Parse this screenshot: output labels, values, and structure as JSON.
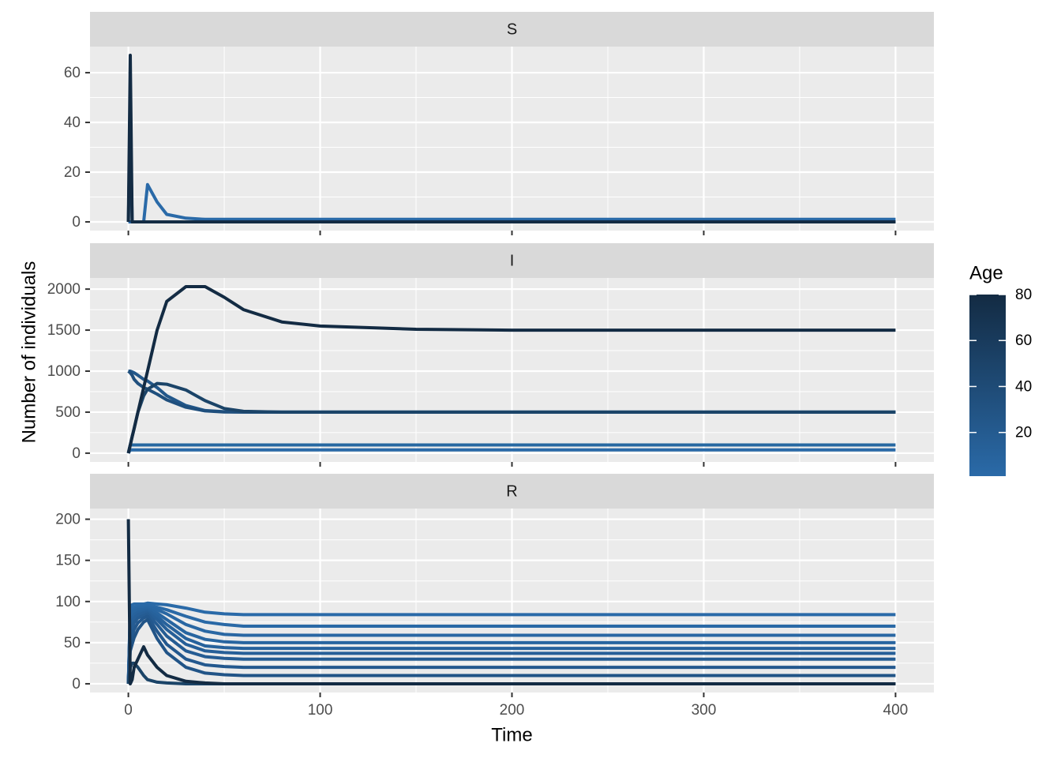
{
  "chart_data": [
    {
      "type": "line",
      "title": "S",
      "x": [
        0,
        1,
        2,
        3,
        5,
        8,
        10,
        15,
        20,
        30,
        40,
        50,
        60,
        80,
        100,
        150,
        200,
        300,
        400
      ],
      "xlim": [
        -20,
        420
      ],
      "xticks": [
        0,
        100,
        200,
        300,
        400
      ],
      "ylim": [
        -3.5,
        70.5
      ],
      "yticks": [
        0,
        20,
        40,
        60
      ],
      "grid": true,
      "series": [
        {
          "color": "#2a6aa8",
          "values": [
            0,
            0,
            0,
            0,
            0,
            0,
            15,
            8,
            3,
            1.5,
            1,
            1,
            1,
            1,
            1,
            1,
            1,
            1,
            1
          ]
        },
        {
          "color": "#1f4f7d",
          "values": [
            0,
            42,
            0,
            0,
            0,
            0,
            0,
            0,
            0,
            0,
            0,
            0,
            0,
            0,
            0,
            0,
            0,
            0,
            0
          ]
        },
        {
          "color": "#132b43",
          "values": [
            0,
            67,
            0,
            0,
            0,
            0,
            0,
            0,
            0,
            0,
            0,
            0,
            0,
            0,
            0,
            0,
            0,
            0,
            0
          ]
        }
      ]
    },
    {
      "type": "line",
      "title": "I",
      "x": [
        0,
        1,
        2,
        3,
        5,
        8,
        10,
        15,
        20,
        30,
        40,
        50,
        60,
        80,
        100,
        150,
        200,
        300,
        400
      ],
      "xlim": [
        -20,
        420
      ],
      "xticks": [
        0,
        100,
        200,
        300,
        400
      ],
      "ylim": [
        -107,
        2136
      ],
      "yticks": [
        0,
        500,
        1000,
        1500,
        2000
      ],
      "grid": true,
      "ylabel": "Number of individuals",
      "legend": {
        "title": "Age",
        "limits": [
          1,
          80
        ],
        "ticks": [
          20,
          40,
          60,
          80
        ],
        "low": "#2a6aa8",
        "high": "#132b43"
      },
      "series": [
        {
          "color": "#2a6aa8",
          "values": [
            0,
            40,
            40,
            40,
            40,
            40,
            40,
            40,
            40,
            40,
            40,
            40,
            40,
            40,
            40,
            40,
            40,
            40,
            40
          ]
        },
        {
          "color": "#2668a2",
          "values": [
            0,
            100,
            100,
            100,
            100,
            100,
            100,
            100,
            100,
            100,
            100,
            100,
            100,
            100,
            100,
            100,
            100,
            100,
            100
          ]
        },
        {
          "color": "#22578a",
          "values": [
            1000,
            1000,
            990,
            980,
            950,
            900,
            880,
            800,
            700,
            580,
            520,
            505,
            500,
            500,
            500,
            500,
            500,
            500,
            500
          ]
        },
        {
          "color": "#1f4f7d",
          "values": [
            1000,
            980,
            950,
            900,
            850,
            800,
            780,
            720,
            650,
            560,
            515,
            502,
            500,
            500,
            500,
            500,
            500,
            500,
            500
          ]
        },
        {
          "color": "#1b4468",
          "values": [
            0,
            100,
            200,
            300,
            500,
            700,
            780,
            850,
            840,
            770,
            640,
            545,
            510,
            500,
            500,
            500,
            500,
            500,
            500
          ]
        },
        {
          "color": "#132b43",
          "values": [
            0,
            100,
            200,
            300,
            500,
            800,
            1000,
            1500,
            1850,
            2030,
            2030,
            1900,
            1750,
            1600,
            1550,
            1510,
            1500,
            1500,
            1500
          ]
        }
      ]
    },
    {
      "type": "line",
      "title": "R",
      "x": [
        0,
        1,
        2,
        3,
        5,
        8,
        10,
        15,
        20,
        30,
        40,
        50,
        60,
        80,
        100,
        150,
        200,
        300,
        400
      ],
      "xlim": [
        -20,
        420
      ],
      "xticks": [
        0,
        100,
        200,
        300,
        400
      ],
      "ylim": [
        -10.6,
        213
      ],
      "yticks": [
        0,
        50,
        100,
        150,
        200
      ],
      "grid": true,
      "xlabel": "Time",
      "series": [
        {
          "color": "#2a6aa8",
          "values": [
            0,
            95,
            96,
            97,
            97,
            97,
            98,
            97,
            96,
            92,
            87,
            85,
            84,
            84,
            84,
            84,
            84,
            84,
            84
          ]
        },
        {
          "color": "#2a69a6",
          "values": [
            0,
            90,
            92,
            93,
            94,
            94,
            95,
            93,
            90,
            82,
            75,
            72,
            70,
            70,
            70,
            70,
            70,
            70,
            70
          ]
        },
        {
          "color": "#2967a3",
          "values": [
            0,
            85,
            88,
            90,
            92,
            92,
            93,
            90,
            85,
            72,
            64,
            60,
            59,
            59,
            59,
            59,
            59,
            59,
            59
          ]
        },
        {
          "color": "#2865a0",
          "values": [
            0,
            80,
            85,
            88,
            90,
            90,
            91,
            86,
            78,
            62,
            54,
            51,
            50,
            50,
            50,
            50,
            50,
            50,
            50
          ]
        },
        {
          "color": "#27629c",
          "values": [
            0,
            75,
            80,
            84,
            87,
            88,
            89,
            82,
            72,
            55,
            46,
            44,
            43,
            43,
            43,
            43,
            43,
            43,
            43
          ]
        },
        {
          "color": "#265f98",
          "values": [
            0,
            70,
            76,
            80,
            84,
            86,
            87,
            78,
            66,
            48,
            40,
            38,
            37,
            37,
            37,
            37,
            37,
            37,
            37
          ]
        },
        {
          "color": "#255c93",
          "values": [
            0,
            60,
            68,
            74,
            80,
            83,
            85,
            72,
            58,
            40,
            33,
            31,
            30,
            30,
            30,
            30,
            30,
            30,
            30
          ]
        },
        {
          "color": "#23588e",
          "values": [
            0,
            50,
            58,
            66,
            74,
            80,
            82,
            64,
            48,
            30,
            23,
            21,
            20,
            20,
            20,
            20,
            20,
            20,
            20
          ]
        },
        {
          "color": "#215487",
          "values": [
            0,
            40,
            48,
            56,
            66,
            75,
            78,
            55,
            38,
            20,
            13,
            11,
            10,
            10,
            10,
            10,
            10,
            10,
            10
          ]
        },
        {
          "color": "#1b4468",
          "values": [
            0,
            20,
            25,
            25,
            20,
            10,
            5,
            2,
            1,
            0,
            0,
            0,
            0,
            0,
            0,
            0,
            0,
            0,
            0
          ]
        },
        {
          "color": "#132b43",
          "values": [
            200,
            0,
            5,
            20,
            30,
            45,
            35,
            20,
            10,
            3,
            1,
            0,
            0,
            0,
            0,
            0,
            0,
            0,
            0
          ]
        }
      ]
    }
  ]
}
